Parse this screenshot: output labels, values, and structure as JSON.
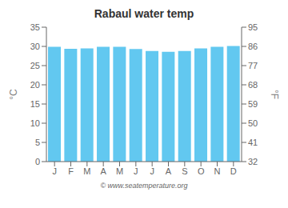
{
  "chart_data": {
    "type": "bar",
    "title": "Rabaul water temp",
    "categories": [
      "J",
      "F",
      "M",
      "A",
      "M",
      "J",
      "J",
      "A",
      "S",
      "O",
      "N",
      "D"
    ],
    "values": [
      29.9,
      29.4,
      29.5,
      29.9,
      29.9,
      29.3,
      28.8,
      28.6,
      28.8,
      29.5,
      29.9,
      30.1
    ],
    "color": "#62c8f0",
    "ylabel": "°C",
    "y2label": "°F",
    "ylim": [
      0,
      35
    ],
    "yticks": [
      0,
      5,
      10,
      15,
      20,
      25,
      30,
      35
    ],
    "y2lim": [
      32,
      95
    ],
    "y2ticks": [
      32,
      41,
      50,
      59,
      68,
      77,
      86,
      95
    ],
    "grid": false,
    "annotations": [
      "© www.seatemperature.org"
    ]
  }
}
